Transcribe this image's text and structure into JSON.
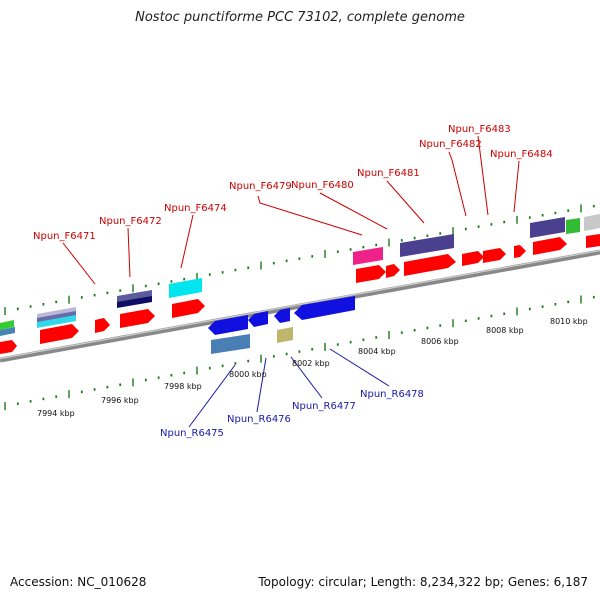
{
  "title": "Nostoc punctiforme PCC 73102, complete genome",
  "footer": {
    "accession": "Accession: NC_010628",
    "summary": "Topology: circular; Length: 8,234,322 bp; Genes: 6,187"
  },
  "colors": {
    "forward_cds": "#ff0000",
    "reverse_cds": "#1010e0",
    "forward_label": "#cc0000",
    "reverse_label": "#1a1aa6",
    "tick": "#1a7a1a",
    "backbone": "#999999"
  },
  "scale_ticks": [
    {
      "label": "7994 kbp"
    },
    {
      "label": "7996 kbp"
    },
    {
      "label": "7998 kbp"
    },
    {
      "label": "8000 kbp"
    },
    {
      "label": "8002 kbp"
    },
    {
      "label": "8004 kbp"
    },
    {
      "label": "8006 kbp"
    },
    {
      "label": "8008 kbp"
    },
    {
      "label": "8010 kbp"
    }
  ],
  "forward_genes": [
    {
      "label": "Npun_F6471"
    },
    {
      "label": "Npun_F6472"
    },
    {
      "label": "Npun_F6474"
    },
    {
      "label": "Npun_F6479"
    },
    {
      "label": "Npun_F6480"
    },
    {
      "label": "Npun_F6481"
    },
    {
      "label": "Npun_F6482"
    },
    {
      "label": "Npun_F6483"
    },
    {
      "label": "Npun_F6484"
    }
  ],
  "reverse_genes": [
    {
      "label": "Npun_R6475"
    },
    {
      "label": "Npun_R6476"
    },
    {
      "label": "Npun_R6477"
    },
    {
      "label": "Npun_R6478"
    }
  ]
}
